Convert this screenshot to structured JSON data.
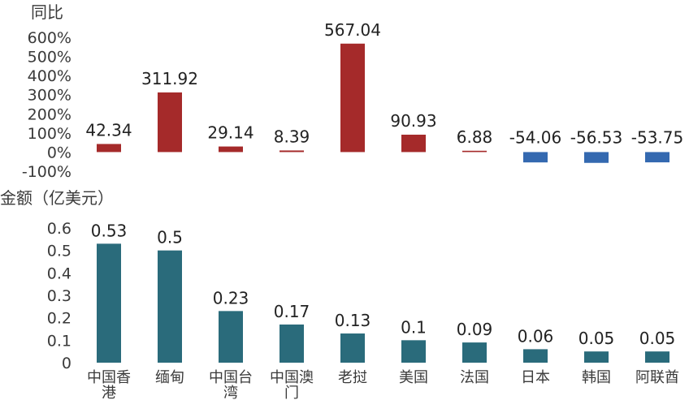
{
  "chart_data": [
    {
      "type": "bar",
      "ylabel": "同比",
      "categories": [
        "中国香港",
        "缅甸",
        "中国台湾",
        "中国澳门",
        "老挝",
        "美国",
        "法国",
        "日本",
        "韩国",
        "阿联酋"
      ],
      "values": [
        42.34,
        311.92,
        29.14,
        8.39,
        567.04,
        90.93,
        6.88,
        -54.06,
        -56.53,
        -53.75
      ],
      "data_labels": [
        "42.34",
        "311.92",
        "29.14",
        "8.39",
        "567.04",
        "90.93",
        "6.88",
        "-54.06",
        "-56.53",
        "-53.75"
      ],
      "ylim": [
        -100,
        600
      ],
      "yticks": [
        "600%",
        "500%",
        "400%",
        "300%",
        "200%",
        "100%",
        "0%",
        "-100%"
      ],
      "colors": {
        "positive": "#A52A2A",
        "negative": "#3469B0"
      },
      "grid": false
    },
    {
      "type": "bar",
      "ylabel": "金额（亿美元）",
      "categories": [
        "中国香港",
        "缅甸",
        "中国台湾",
        "中国澳门",
        "老挝",
        "美国",
        "法国",
        "日本",
        "韩国",
        "阿联酋"
      ],
      "category_lines": [
        [
          "中国香",
          "港"
        ],
        [
          "缅甸"
        ],
        [
          "中国台",
          "湾"
        ],
        [
          "中国澳",
          "门"
        ],
        [
          "老挝"
        ],
        [
          "美国"
        ],
        [
          "法国"
        ],
        [
          "日本"
        ],
        [
          "韩国"
        ],
        [
          "阿联酋"
        ]
      ],
      "values": [
        0.53,
        0.5,
        0.23,
        0.17,
        0.13,
        0.1,
        0.09,
        0.06,
        0.05,
        0.05
      ],
      "data_labels": [
        "0.53",
        "0.5",
        "0.23",
        "0.17",
        "0.13",
        "0.1",
        "0.09",
        "0.06",
        "0.05",
        "0.05"
      ],
      "ylim": [
        0,
        0.6
      ],
      "yticks": [
        "0.6",
        "0.5",
        "0.4",
        "0.3",
        "0.2",
        "0.1",
        "0"
      ],
      "colors": {
        "bar": "#2A6B7B"
      },
      "grid": false
    }
  ]
}
